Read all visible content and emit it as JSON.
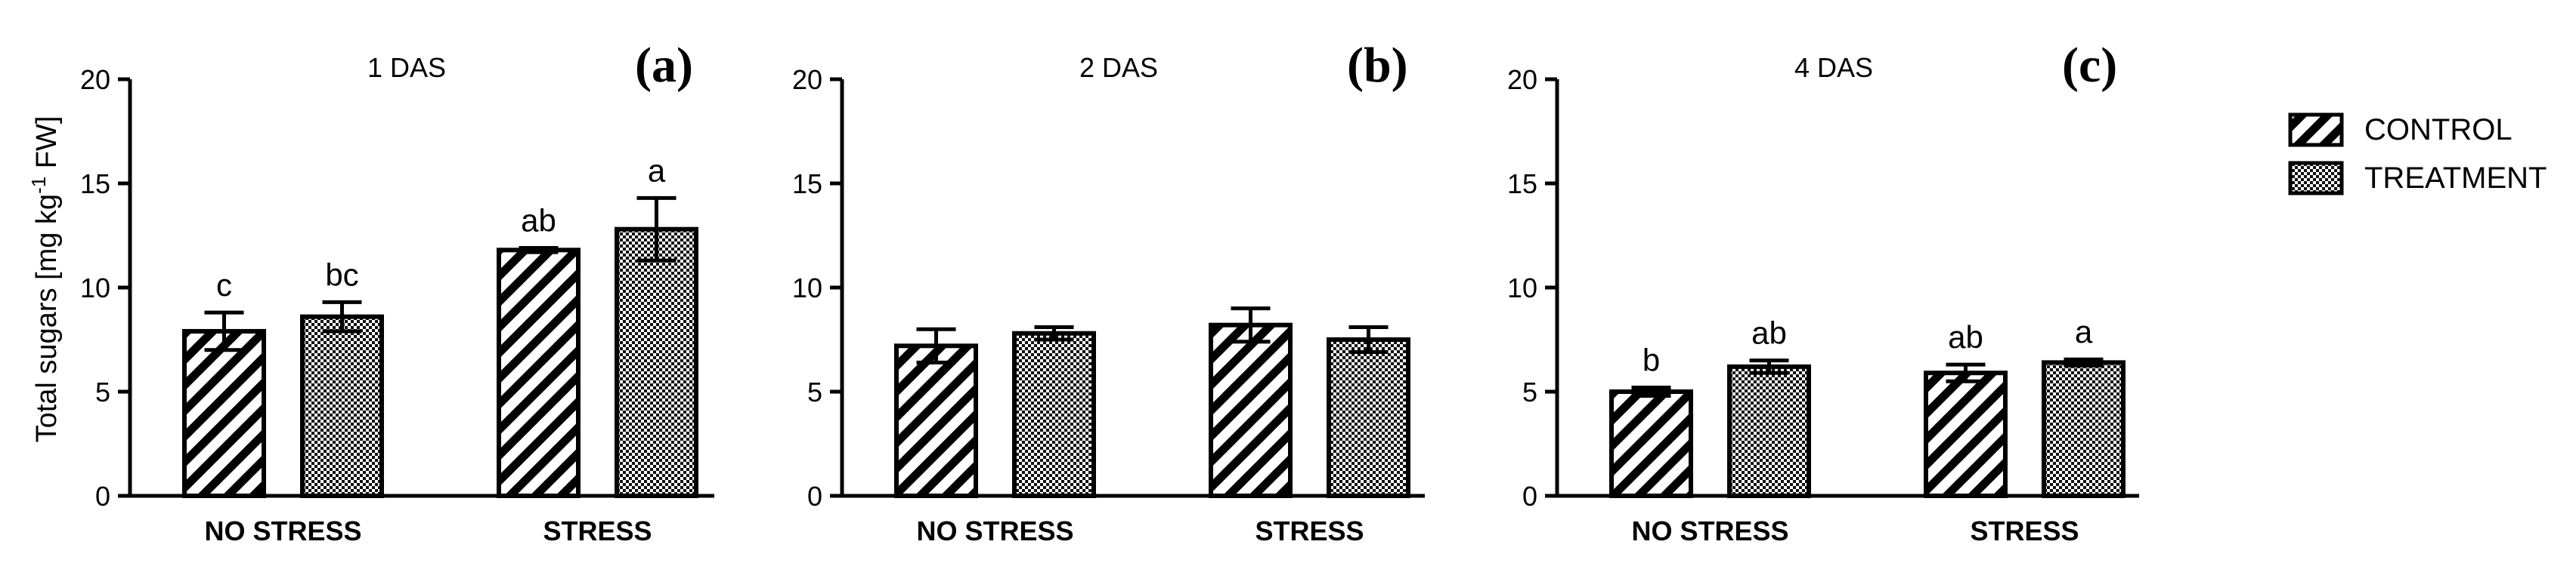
{
  "y_axis_label": "Total sugars [mg kg",
  "y_axis_label_sup": "-1",
  "y_axis_label_end": " FW]",
  "legend": [
    {
      "label": "CONTROL",
      "pattern": "diagonal-hatch"
    },
    {
      "label": "TREATMENT",
      "pattern": "checkered"
    }
  ],
  "colors": {
    "ink": "#000000",
    "background": "#ffffff"
  },
  "chart_data": [
    {
      "type": "bar",
      "panel": "(a)",
      "title": "1 DAS",
      "categories": [
        "NO STRESS",
        "STRESS"
      ],
      "ylim": [
        0,
        20
      ],
      "yticks": [
        "0",
        "5",
        "10",
        "15",
        "20"
      ],
      "series": [
        {
          "name": "CONTROL",
          "values": [
            7.9,
            11.8
          ],
          "errors": [
            0.9,
            0.1
          ],
          "letters": [
            "c",
            "ab"
          ]
        },
        {
          "name": "TREATMENT",
          "values": [
            8.6,
            12.8
          ],
          "errors": [
            0.7,
            1.5
          ],
          "letters": [
            "bc",
            "a"
          ]
        }
      ]
    },
    {
      "type": "bar",
      "panel": "(b)",
      "title": "2 DAS",
      "categories": [
        "NO STRESS",
        "STRESS"
      ],
      "ylim": [
        0,
        20
      ],
      "yticks": [
        "0",
        "5",
        "10",
        "15",
        "20"
      ],
      "series": [
        {
          "name": "CONTROL",
          "values": [
            7.2,
            8.2
          ],
          "errors": [
            0.8,
            0.8
          ],
          "letters": [
            "",
            ""
          ]
        },
        {
          "name": "TREATMENT",
          "values": [
            7.8,
            7.5
          ],
          "errors": [
            0.3,
            0.6
          ],
          "letters": [
            "",
            ""
          ]
        }
      ]
    },
    {
      "type": "bar",
      "panel": "(c)",
      "title": "4 DAS",
      "categories": [
        "NO STRESS",
        "STRESS"
      ],
      "ylim": [
        0,
        20
      ],
      "yticks": [
        "0",
        "5",
        "10",
        "15",
        "20"
      ],
      "series": [
        {
          "name": "CONTROL",
          "values": [
            5.0,
            5.9
          ],
          "errors": [
            0.2,
            0.4
          ],
          "letters": [
            "b",
            "ab"
          ]
        },
        {
          "name": "TREATMENT",
          "values": [
            6.2,
            6.4
          ],
          "errors": [
            0.3,
            0.15
          ],
          "letters": [
            "ab",
            "a"
          ]
        }
      ]
    }
  ]
}
